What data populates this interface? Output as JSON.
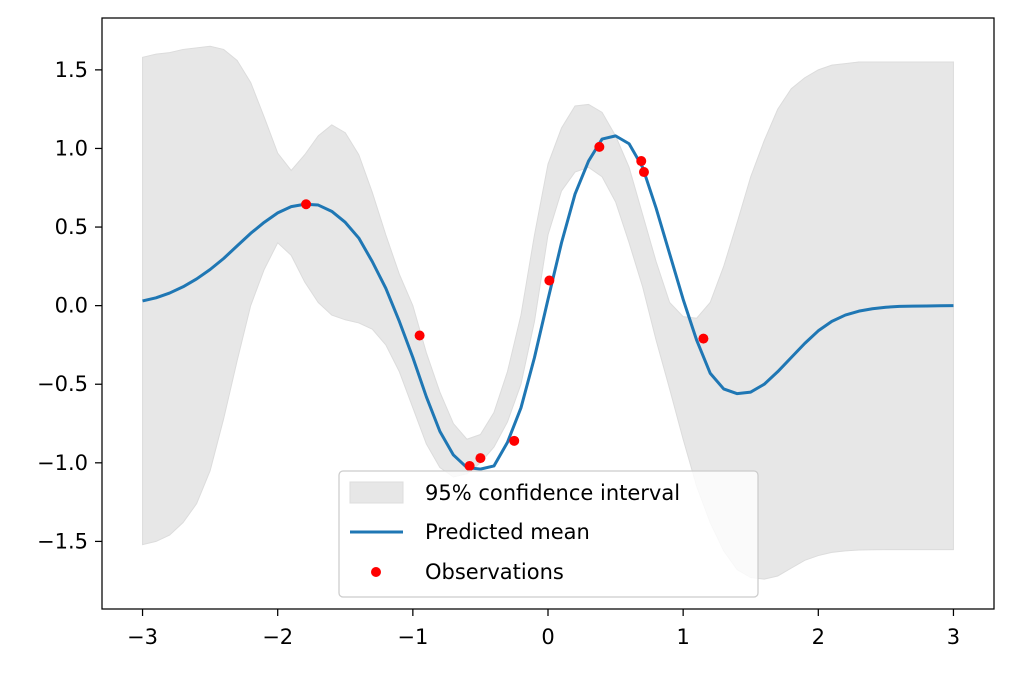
{
  "chart_data": {
    "type": "line",
    "title": "",
    "xlabel": "",
    "ylabel": "",
    "xlim": [
      -3.3,
      3.3
    ],
    "ylim": [
      -1.93,
      1.83
    ],
    "grid": false,
    "legend_position": "bottom-center",
    "x_ticks": [
      -3,
      -2,
      -1,
      0,
      1,
      2,
      3
    ],
    "x_tick_labels": [
      "−3",
      "−2",
      "−1",
      "0",
      "1",
      "2",
      "3"
    ],
    "y_ticks": [
      -1.5,
      -1.0,
      -0.5,
      0.0,
      0.5,
      1.0,
      1.5
    ],
    "y_tick_labels": [
      "−1.5",
      "−1.0",
      "−0.5",
      "0.0",
      "0.5",
      "1.0",
      "1.5"
    ],
    "series": [
      {
        "name": "95% confidence interval",
        "kind": "band",
        "color": "#e7e7e7",
        "x": [
          -3.0,
          -2.9,
          -2.8,
          -2.7,
          -2.6,
          -2.5,
          -2.4,
          -2.3,
          -2.2,
          -2.1,
          -2.0,
          -1.9,
          -1.8,
          -1.7,
          -1.6,
          -1.5,
          -1.4,
          -1.3,
          -1.2,
          -1.1,
          -1.0,
          -0.9,
          -0.8,
          -0.7,
          -0.6,
          -0.5,
          -0.4,
          -0.3,
          -0.2,
          -0.1,
          0.0,
          0.1,
          0.2,
          0.3,
          0.4,
          0.5,
          0.6,
          0.7,
          0.8,
          0.9,
          1.0,
          1.1,
          1.2,
          1.3,
          1.4,
          1.5,
          1.6,
          1.7,
          1.8,
          1.9,
          2.0,
          2.1,
          2.2,
          2.3,
          2.4,
          2.5,
          2.6,
          2.7,
          2.8,
          2.9,
          3.0
        ],
        "upper": [
          1.58,
          1.6,
          1.61,
          1.63,
          1.64,
          1.65,
          1.63,
          1.56,
          1.42,
          1.2,
          0.97,
          0.86,
          0.96,
          1.08,
          1.15,
          1.1,
          0.96,
          0.72,
          0.45,
          0.2,
          0.0,
          -0.3,
          -0.55,
          -0.75,
          -0.85,
          -0.82,
          -0.68,
          -0.42,
          -0.06,
          0.45,
          0.9,
          1.13,
          1.27,
          1.28,
          1.23,
          1.08,
          0.88,
          0.58,
          0.28,
          0.02,
          -0.07,
          -0.08,
          0.02,
          0.25,
          0.53,
          0.82,
          1.05,
          1.25,
          1.38,
          1.45,
          1.5,
          1.53,
          1.54,
          1.55,
          1.55,
          1.55,
          1.55,
          1.55,
          1.55,
          1.55,
          1.55
        ],
        "lower": [
          -1.52,
          -1.5,
          -1.46,
          -1.38,
          -1.26,
          -1.05,
          -0.72,
          -0.35,
          0.0,
          0.23,
          0.4,
          0.32,
          0.15,
          0.02,
          -0.06,
          -0.09,
          -0.11,
          -0.15,
          -0.25,
          -0.42,
          -0.65,
          -0.88,
          -1.03,
          -1.09,
          -1.07,
          -1.0,
          -0.9,
          -0.74,
          -0.5,
          -0.1,
          0.45,
          0.73,
          0.85,
          0.88,
          0.82,
          0.66,
          0.4,
          0.12,
          -0.22,
          -0.53,
          -0.85,
          -1.15,
          -1.38,
          -1.56,
          -1.68,
          -1.73,
          -1.74,
          -1.72,
          -1.67,
          -1.62,
          -1.59,
          -1.57,
          -1.56,
          -1.555,
          -1.553,
          -1.552,
          -1.552,
          -1.552,
          -1.552,
          -1.552,
          -1.552
        ]
      },
      {
        "name": "Predicted mean",
        "kind": "line",
        "color": "#1f77b4",
        "x": [
          -3.0,
          -2.9,
          -2.8,
          -2.7,
          -2.6,
          -2.5,
          -2.4,
          -2.3,
          -2.2,
          -2.1,
          -2.0,
          -1.9,
          -1.8,
          -1.7,
          -1.6,
          -1.5,
          -1.4,
          -1.3,
          -1.2,
          -1.1,
          -1.0,
          -0.9,
          -0.8,
          -0.7,
          -0.6,
          -0.5,
          -0.4,
          -0.3,
          -0.2,
          -0.1,
          0.0,
          0.1,
          0.2,
          0.3,
          0.4,
          0.5,
          0.6,
          0.7,
          0.8,
          0.9,
          1.0,
          1.1,
          1.2,
          1.3,
          1.4,
          1.5,
          1.6,
          1.7,
          1.8,
          1.9,
          2.0,
          2.1,
          2.2,
          2.3,
          2.4,
          2.5,
          2.6,
          2.7,
          2.8,
          2.9,
          3.0
        ],
        "y": [
          0.03,
          0.05,
          0.08,
          0.12,
          0.17,
          0.23,
          0.3,
          0.38,
          0.46,
          0.53,
          0.59,
          0.63,
          0.645,
          0.64,
          0.6,
          0.53,
          0.43,
          0.28,
          0.11,
          -0.1,
          -0.33,
          -0.58,
          -0.8,
          -0.95,
          -1.03,
          -1.04,
          -1.02,
          -0.87,
          -0.65,
          -0.33,
          0.04,
          0.4,
          0.71,
          0.92,
          1.06,
          1.08,
          1.03,
          0.88,
          0.62,
          0.33,
          0.04,
          -0.22,
          -0.43,
          -0.53,
          -0.56,
          -0.55,
          -0.5,
          -0.42,
          -0.33,
          -0.24,
          -0.16,
          -0.1,
          -0.06,
          -0.035,
          -0.02,
          -0.01,
          -0.005,
          -0.003,
          -0.002,
          -0.001,
          0.0
        ]
      },
      {
        "name": "Observations",
        "kind": "scatter",
        "color": "#ff0000",
        "x": [
          -1.79,
          -0.95,
          -0.58,
          -0.5,
          -0.25,
          0.01,
          0.38,
          0.69,
          0.71,
          1.15
        ],
        "y": [
          0.645,
          -0.19,
          -1.02,
          -0.97,
          -0.86,
          0.16,
          1.01,
          0.92,
          0.85,
          -0.21
        ]
      }
    ]
  }
}
